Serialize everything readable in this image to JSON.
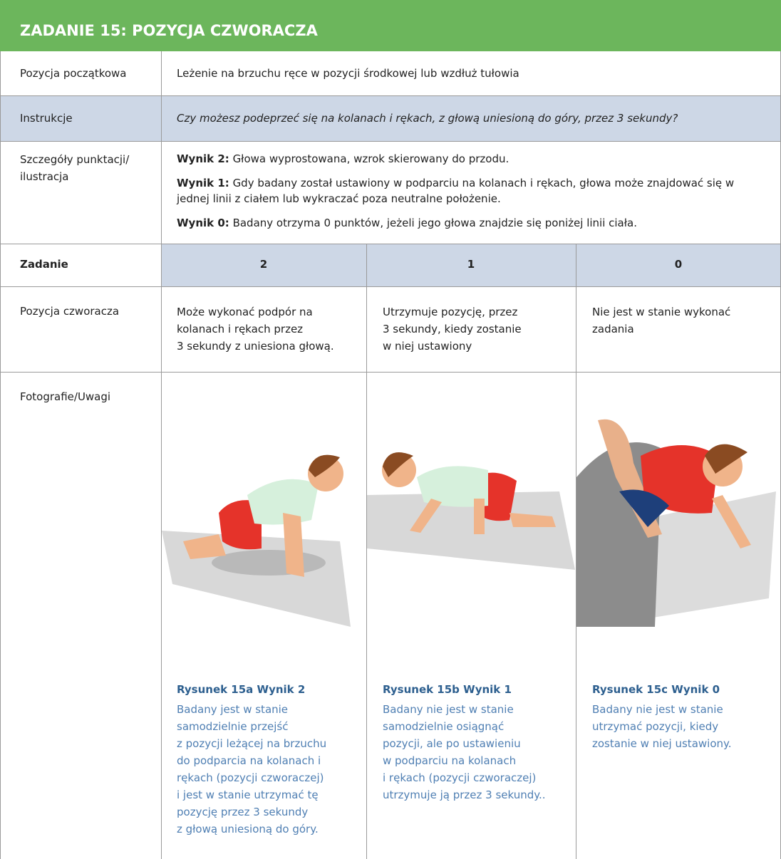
{
  "header": {
    "title": "ZADANIE 15: POZYCJA CZWORACZA"
  },
  "table": {
    "rows": [
      {
        "label": "Pozycja początkowa",
        "text": "Leżenie na brzuchu ręce w pozycji środkowej lub wzdłuż tułowia"
      },
      {
        "label": "Instrukcje",
        "text": "Czy możesz podeprzeć się na kolanach i rękach, z głową uniesioną do góry, przez 3 sekundy?"
      },
      {
        "label": [
          "Szczegóły punktacji/",
          "ilustracja"
        ],
        "scores": [
          {
            "label": "Wynik 2:",
            "text": "Głowa wyprostowana, wzrok skierowany do przodu."
          },
          {
            "label": "Wynik 1:",
            "text": "Gdy badany został ustawiony w podparciu na kolanach i rękach, głowa może znajdować się w jednej linii z ciałem lub wykraczać poza neutralne położenie."
          },
          {
            "label": "Wynik 0:",
            "text": "Badany otrzyma 0 punktów, jeżeli jego głowa znajdzie się poniżej linii ciała."
          }
        ]
      }
    ]
  },
  "task": {
    "label": "Zadanie",
    "columns": [
      "2",
      "1",
      "0"
    ]
  },
  "position": {
    "label": "Pozycja czworacza",
    "cells": [
      [
        "Może wykonać podpór na",
        "kolanach i rękach przez",
        "3 sekundy z uniesiona głową."
      ],
      [
        "Utrzymuje pozycję, przez",
        "3 sekundy, kiedy zostanie",
        "w niej ustawiony"
      ],
      [
        "Nie jest w stanie wykonać",
        "zadania"
      ]
    ]
  },
  "photos": {
    "label": "Fotografie/Uwagi",
    "figures": [
      {
        "title": "Rysunek 15a Wynik 2",
        "lines": [
          "Badany jest w stanie",
          "samodzielnie przejść",
          "z pozycji leżącej na brzuchu",
          "do podparcia na kolanach i",
          "rękach (pozycji czworaczej)",
          "i jest w stanie utrzymać tę",
          "pozycję przez 3 sekundy",
          "z głową uniesioną do góry."
        ]
      },
      {
        "title": "Rysunek 15b Wynik 1",
        "lines": [
          "Badany nie jest w stanie",
          "samodzielnie osiągnąć",
          "pozycji, ale po ustawieniu",
          "w podparciu na kolanach",
          "i rękach (pozycji czworaczej)",
          "utrzymuje ją przez 3 sekundy.."
        ]
      },
      {
        "title": "Rysunek 15c Wynik 0",
        "lines": [
          "Badany nie jest w stanie",
          "utrzymać pozycji, kiedy",
          "zostanie w niej ustawiony."
        ]
      }
    ]
  }
}
